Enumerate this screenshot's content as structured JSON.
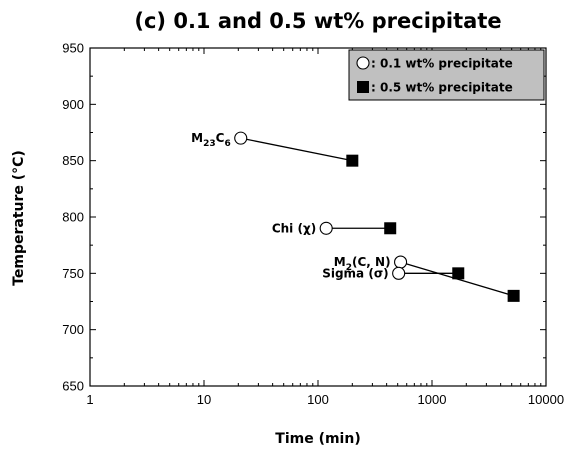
{
  "chart_data": {
    "type": "scatter",
    "title": "(c) 0.1 and 0.5 wt% precipitate",
    "xlabel": "Time (min)",
    "ylabel": "Temperature (°C)",
    "x_scale": "log",
    "xlim": [
      1,
      10000
    ],
    "ylim": [
      650,
      950
    ],
    "x_ticks": [
      1,
      10,
      100,
      1000,
      10000
    ],
    "x_tick_labels": [
      "1",
      "10",
      "100",
      "1000",
      "10000"
    ],
    "y_ticks": [
      650,
      700,
      750,
      800,
      850,
      900,
      950
    ],
    "y_tick_labels": [
      "650",
      "700",
      "750",
      "800",
      "850",
      "900",
      "950"
    ],
    "grid": false,
    "legend_position": "top-right",
    "legend_background": "#c0c0c0",
    "series": [
      {
        "name": ": 0.1 wt% precipitate",
        "marker": "open-circle",
        "x": [
          21,
          118,
          530,
          510
        ],
        "y": [
          870,
          790,
          760,
          750
        ]
      },
      {
        "name": ": 0.5 wt% precipitate",
        "marker": "filled-square",
        "x": [
          200,
          430,
          1700,
          5200
        ],
        "y": [
          850,
          790,
          750,
          730
        ]
      }
    ],
    "connections": [
      {
        "x": [
          21,
          200
        ],
        "y": [
          870,
          850
        ]
      },
      {
        "x": [
          118,
          430
        ],
        "y": [
          790,
          790
        ]
      },
      {
        "x": [
          530,
          5200
        ],
        "y": [
          760,
          730
        ]
      },
      {
        "x": [
          510,
          1700
        ],
        "y": [
          750,
          750
        ]
      }
    ],
    "annotations": [
      {
        "parts": [
          [
            "M",
            ""
          ],
          [
            "23",
            "sub"
          ],
          [
            "C",
            ""
          ],
          [
            "6",
            "sub"
          ]
        ],
        "x": 21,
        "y": 870,
        "anchor": "end"
      },
      {
        "parts": [
          [
            "Chi (χ)",
            ""
          ]
        ],
        "x": 118,
        "y": 790,
        "anchor": "end"
      },
      {
        "parts": [
          [
            "M",
            ""
          ],
          [
            "2",
            "sub"
          ],
          [
            "(C, N)",
            ""
          ]
        ],
        "x": 530,
        "y": 760,
        "anchor": "end"
      },
      {
        "parts": [
          [
            "Sigma (σ)",
            ""
          ]
        ],
        "x": 510,
        "y": 750,
        "anchor": "end"
      }
    ]
  }
}
